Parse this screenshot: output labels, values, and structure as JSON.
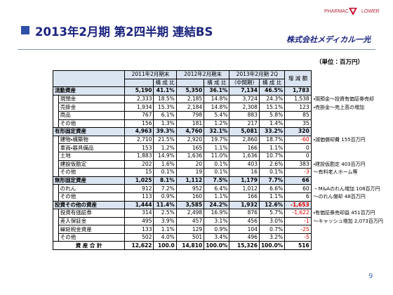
{
  "header": {
    "title": "2013年2月期 第2四半期 連結BS",
    "logo_left": "PHARMAC",
    "logo_right": "LOWER",
    "company": "株式会社メディカル一光"
  },
  "unit": "（単位：百万円）",
  "table": {
    "periods": [
      {
        "title": "2011年2月期末",
        "ratio": "構 成 比"
      },
      {
        "title": "2012年2月期末",
        "ratio": "構 成 比"
      },
      {
        "title": "2013年2月期 2Q",
        "amount": "（中間期）",
        "ratio": "構 成 比"
      }
    ],
    "change": "増 減 額",
    "sections": [
      {
        "label": "流動資産",
        "cells": [
          "5,190",
          "41.1%",
          "5,350",
          "36.1%",
          "7,134",
          "46.5%",
          "1,783"
        ],
        "items": [
          {
            "label": "現預金",
            "cells": [
              "2,333",
              "18.5%",
              "2,185",
              "14.8%",
              "3,724",
              "24.3%",
              "1,538"
            ],
            "note": "・現預金～投資有価証券売却"
          },
          {
            "label": "売掛金",
            "cells": [
              "1,934",
              "15.3%",
              "2,184",
              "14.8%",
              "2,308",
              "15.1%",
              "123"
            ],
            "note": "・売掛金～売上高の増加"
          },
          {
            "label": "商品",
            "cells": [
              "767",
              "6.1%",
              "798",
              "5.4%",
              "883",
              "5.8%",
              "85"
            ]
          },
          {
            "label": "その他",
            "cells": [
              "156",
              "1.3%",
              "181",
              "1.2%",
              "217",
              "1.4%",
              "35"
            ]
          }
        ]
      },
      {
        "label": "有形固定資産",
        "cells": [
          "4,963",
          "39.3%",
          "4,760",
          "32.1%",
          "5,081",
          "33.2%",
          "320"
        ],
        "items": [
          {
            "label": "建物・構築物",
            "cells": [
              "2,710",
              "21.5%",
              "2,920",
              "19.7%",
              "2,860",
              "18.7%",
              "-60"
            ],
            "note": "・減価償却費 155百万円"
          },
          {
            "label": "車両・器具備品",
            "cells": [
              "153",
              "1.2%",
              "165",
              "1.1%",
              "166",
              "1.1%",
              "0"
            ]
          },
          {
            "label": "土地",
            "cells": [
              "1,883",
              "14.9%",
              "1,636",
              "11.0%",
              "1,636",
              "10.7%",
              "0"
            ]
          },
          {
            "label": "建設仮勘定",
            "cells": [
              "202",
              "1.6%",
              "20",
              "0.1%",
              "403",
              "2.6%",
              "383"
            ],
            "note": "・建設仮勘定 403百万円"
          },
          {
            "label": "その他",
            "cells": [
              "15",
              "0.1%",
              "19",
              "0.1%",
              "16",
              "0.1%",
              "-3"
            ],
            "note": "～有料老人ホーム等"
          }
        ]
      },
      {
        "label": "無形固定資産",
        "cells": [
          "1,025",
          "8.1%",
          "1,112",
          "7.5%",
          "1,179",
          "7.7%",
          "66"
        ],
        "items": [
          {
            "label": "のれん",
            "cells": [
              "912",
              "7.2%",
              "952",
              "6.4%",
              "1,012",
              "6.6%",
              "60"
            ],
            "note": "・M&Aのれん増加 108百万円"
          },
          {
            "label": "その他",
            "cells": [
              "113",
              "0.9%",
              "160",
              "1.1%",
              "166",
              "1.1%",
              "6"
            ],
            "note": "～のれん償却 48百万円"
          }
        ]
      },
      {
        "label": "投資その他の資産",
        "cells": [
          "1,444",
          "11.4%",
          "3,585",
          "24.2%",
          "1,932",
          "12.6%",
          "-1,653"
        ],
        "items": [
          {
            "label": "投資有価証券",
            "cells": [
              "314",
              "2.5%",
              "2,498",
              "16.9%",
              "876",
              "5.7%",
              "-1,622"
            ],
            "note": "・有価証券売却益 451百万円"
          },
          {
            "label": "差入保証金",
            "cells": [
              "495",
              "3.9%",
              "457",
              "3.1%",
              "456",
              "3.0%",
              "-1"
            ],
            "note": "～キャッシュ増加 2,073百万円"
          },
          {
            "label": "繰延税金資産",
            "cells": [
              "133",
              "1.1%",
              "129",
              "0.9%",
              "104",
              "0.7%",
              "-25"
            ]
          },
          {
            "label": "その他",
            "cells": [
              "502",
              "4.0%",
              "501",
              "3.4%",
              "496",
              "3.2%",
              "-5"
            ]
          }
        ]
      }
    ],
    "total": {
      "label": "資 産 合 計",
      "cells": [
        "12,622",
        "100.0",
        "14,810",
        "100.0%",
        "15,326",
        "100.0%",
        "516"
      ]
    }
  },
  "page_number": "9"
}
